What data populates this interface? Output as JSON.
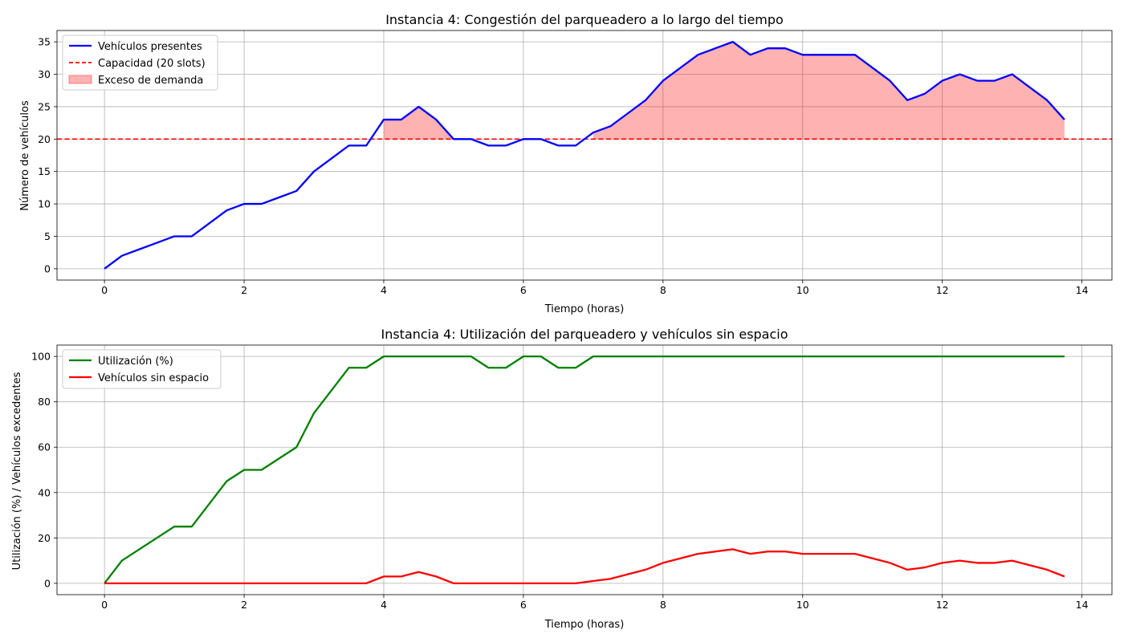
{
  "chart_data": [
    {
      "type": "line",
      "title": "Instancia 4: Congestión del parqueadero a lo largo del tiempo",
      "xlabel": "Tiempo (horas)",
      "ylabel": "Número de vehículos",
      "xlim": [
        -0.68,
        14.43
      ],
      "ylim": [
        -1.75,
        36.75
      ],
      "xticks": [
        0,
        2,
        4,
        6,
        8,
        10,
        12,
        14
      ],
      "yticks": [
        0,
        5,
        10,
        15,
        20,
        25,
        30,
        35
      ],
      "grid": true,
      "legend_position": "top-left",
      "x": [
        0,
        0.25,
        0.5,
        0.75,
        1,
        1.25,
        1.5,
        1.75,
        2,
        2.25,
        2.5,
        2.75,
        3,
        3.25,
        3.5,
        3.75,
        4,
        4.25,
        4.5,
        4.75,
        5,
        5.25,
        5.5,
        5.75,
        6,
        6.25,
        6.5,
        6.75,
        7,
        7.25,
        7.5,
        7.75,
        8,
        8.25,
        8.5,
        8.75,
        9,
        9.25,
        9.5,
        9.75,
        10,
        10.25,
        10.5,
        10.75,
        11,
        11.25,
        11.5,
        11.75,
        12,
        12.25,
        12.5,
        12.75,
        13,
        13.25,
        13.5,
        13.75
      ],
      "series": [
        {
          "name": "Vehículos presentes",
          "color": "#0000ff",
          "style": "solid",
          "values": [
            0,
            2,
            3,
            4,
            5,
            5,
            7,
            9,
            10,
            10,
            11,
            12,
            15,
            17,
            19,
            19,
            23,
            23,
            25,
            23,
            20,
            20,
            19,
            19,
            20,
            20,
            19,
            19,
            21,
            22,
            24,
            26,
            29,
            31,
            33,
            34,
            35,
            33,
            34,
            34,
            33,
            33,
            33,
            33,
            31,
            29,
            26,
            27,
            29,
            30,
            29,
            29,
            30,
            28,
            26,
            23
          ]
        }
      ],
      "reference_line": {
        "name": "Capacidad (20 slots)",
        "y": 20,
        "color": "#ff0000",
        "style": "dashed"
      },
      "fill": {
        "name": "Exceso de demanda",
        "color": "#ff0000",
        "alpha": 0.3,
        "baseline": 20
      }
    },
    {
      "type": "line",
      "title": "Instancia 4: Utilización del parqueadero y vehículos sin espacio",
      "xlabel": "Tiempo (horas)",
      "ylabel": "Utilización (%) / Vehículos excedentes",
      "xlim": [
        -0.68,
        14.43
      ],
      "ylim": [
        -5,
        105
      ],
      "xticks": [
        0,
        2,
        4,
        6,
        8,
        10,
        12,
        14
      ],
      "yticks": [
        0,
        20,
        40,
        60,
        80,
        100
      ],
      "grid": true,
      "legend_position": "top-left",
      "x": [
        0,
        0.25,
        0.5,
        0.75,
        1,
        1.25,
        1.5,
        1.75,
        2,
        2.25,
        2.5,
        2.75,
        3,
        3.25,
        3.5,
        3.75,
        4,
        4.25,
        4.5,
        4.75,
        5,
        5.25,
        5.5,
        5.75,
        6,
        6.25,
        6.5,
        6.75,
        7,
        7.25,
        7.5,
        7.75,
        8,
        8.25,
        8.5,
        8.75,
        9,
        9.25,
        9.5,
        9.75,
        10,
        10.25,
        10.5,
        10.75,
        11,
        11.25,
        11.5,
        11.75,
        12,
        12.25,
        12.5,
        12.75,
        13,
        13.25,
        13.5,
        13.75
      ],
      "series": [
        {
          "name": "Utilización (%)",
          "color": "#008000",
          "style": "solid",
          "values": [
            0,
            10,
            15,
            20,
            25,
            25,
            35,
            45,
            50,
            50,
            55,
            60,
            75,
            85,
            95,
            95,
            100,
            100,
            100,
            100,
            100,
            100,
            95,
            95,
            100,
            100,
            95,
            95,
            100,
            100,
            100,
            100,
            100,
            100,
            100,
            100,
            100,
            100,
            100,
            100,
            100,
            100,
            100,
            100,
            100,
            100,
            100,
            100,
            100,
            100,
            100,
            100,
            100,
            100,
            100,
            100
          ]
        },
        {
          "name": "Vehículos sin espacio",
          "color": "#ff0000",
          "style": "solid",
          "values": [
            0,
            0,
            0,
            0,
            0,
            0,
            0,
            0,
            0,
            0,
            0,
            0,
            0,
            0,
            0,
            0,
            3,
            3,
            5,
            3,
            0,
            0,
            0,
            0,
            0,
            0,
            0,
            0,
            1,
            2,
            4,
            6,
            9,
            11,
            13,
            14,
            15,
            13,
            14,
            14,
            13,
            13,
            13,
            13,
            11,
            9,
            6,
            7,
            9,
            10,
            9,
            9,
            10,
            8,
            6,
            3
          ]
        }
      ]
    }
  ]
}
